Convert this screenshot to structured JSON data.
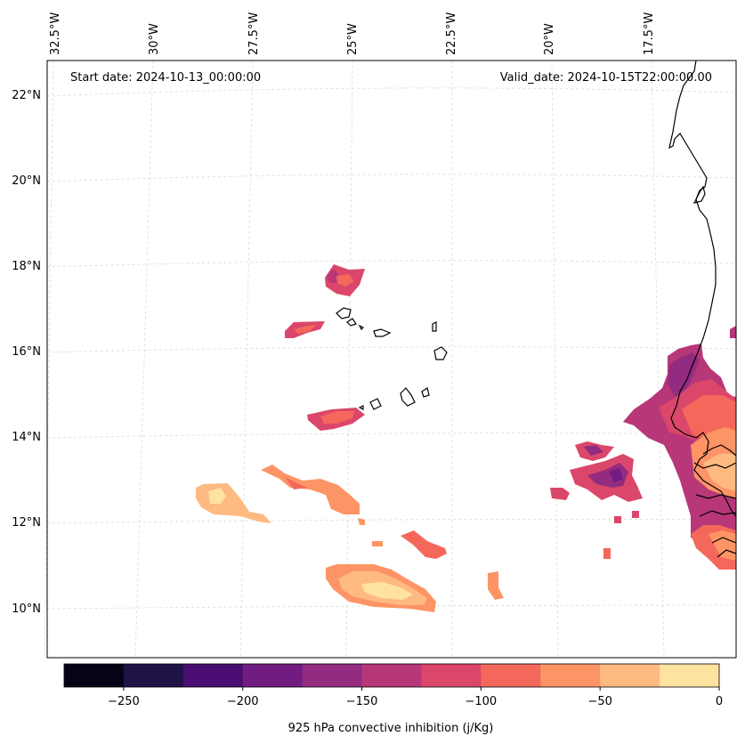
{
  "map": {
    "start_date": "Start date: 2024-10-13_00:00:00",
    "valid_date": "Valid_date: 2024-10-15T22:00:00.00",
    "lon_labels": [
      "32.5°W",
      "30°W",
      "27.5°W",
      "25°W",
      "22.5°W",
      "20°W",
      "17.5°W"
    ],
    "lat_labels": [
      "22°N",
      "20°N",
      "18°N",
      "16°N",
      "14°N",
      "12°N",
      "10°N"
    ],
    "gridlines": true,
    "region": "Cabo Verde / West African coast"
  },
  "colorbar": {
    "label": "925 hPa convective inhibition (j/Kg)",
    "ticks": [
      "−250",
      "−200",
      "−150",
      "−100",
      "−50",
      "0"
    ],
    "range": [
      -275,
      0
    ],
    "levels": [
      -275,
      -250,
      -225,
      -200,
      -175,
      -150,
      -125,
      -100,
      -75,
      -50,
      -25,
      0
    ],
    "colors": [
      "#050417",
      "#1f1245",
      "#4a0e73",
      "#711c81",
      "#932b80",
      "#b73779",
      "#db476a",
      "#f4685c",
      "#fd9465",
      "#feba80",
      "#fde2a0"
    ]
  },
  "colors": {
    "cin_-150_-125": "#b73779",
    "cin_-125_-100": "#db476a",
    "cin_-100_-75": "#f4685c",
    "cin_-75_-50": "#fd9465",
    "cin_-50_-25": "#feba80",
    "cin_-25_0": "#fde2a0",
    "cin_-175_-150": "#932b80",
    "cin_-200_-175": "#711c81",
    "cin_-225_-200": "#4a0e73"
  }
}
